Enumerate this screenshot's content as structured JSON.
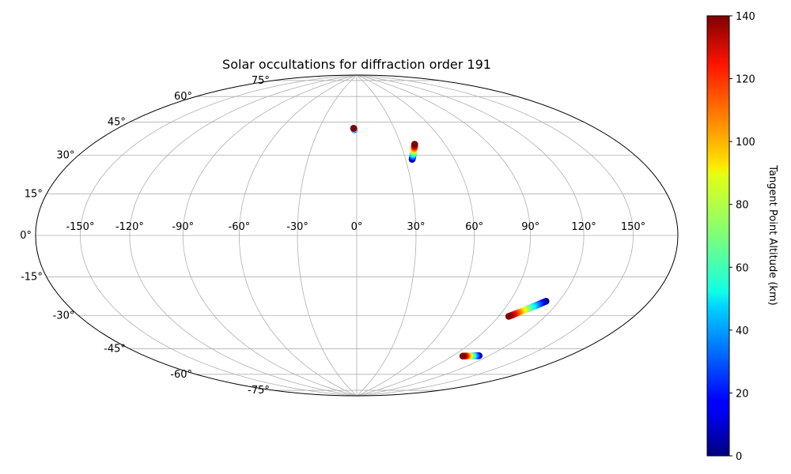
{
  "chart_data": {
    "type": "scatter",
    "projection": "hammer",
    "title": "Solar occultations for diffraction order 191",
    "xlabel": "",
    "ylabel": "",
    "grid": true,
    "longitude_ticks": [
      -150,
      -120,
      -90,
      -60,
      -30,
      0,
      30,
      60,
      90,
      120,
      150
    ],
    "longitude_tick_labels": [
      "-150°",
      "-120°",
      "-90°",
      "-60°",
      "-30°",
      "0°",
      "30°",
      "60°",
      "90°",
      "120°",
      "150°"
    ],
    "latitude_ticks": [
      75,
      60,
      45,
      30,
      15,
      0,
      -15,
      -30,
      -45,
      -60,
      -75
    ],
    "latitude_tick_labels": [
      "75°",
      "60°",
      "45°",
      "30°",
      "15°",
      "0°",
      "-15°",
      "-30°",
      "-45°",
      "-60°",
      "-75°"
    ],
    "colorbar": {
      "label": "Tangent Point Altitude (km)",
      "colormap": "jet",
      "range": [
        0,
        140
      ],
      "ticks": [
        0,
        20,
        40,
        60,
        80,
        100,
        120,
        140
      ],
      "tick_labels": [
        "0",
        "20",
        "40",
        "60",
        "80",
        "100",
        "120",
        "140"
      ]
    },
    "series": [
      {
        "start": {
          "lon": -2.0,
          "lat": 55.6,
          "alt": 0
        },
        "end": {
          "lon": -2.5,
          "lat": 56.4,
          "alt": 140
        },
        "points": 10
      },
      {
        "start": {
          "lon": 34.0,
          "lat": 38.8,
          "alt": 0
        },
        "end": {
          "lon": 39.5,
          "lat": 46.8,
          "alt": 140
        },
        "points": 30
      },
      {
        "start": {
          "lon": 112.0,
          "lat": -30.0,
          "alt": 0
        },
        "end": {
          "lon": 96.5,
          "lat": -38.5,
          "alt": 140
        },
        "points": 30
      },
      {
        "start": {
          "lon": 112.0,
          "lat": -58.5,
          "alt": 0
        },
        "end": {
          "lon": 99.0,
          "lat": -60.0,
          "alt": 140
        },
        "points": 24
      }
    ]
  }
}
